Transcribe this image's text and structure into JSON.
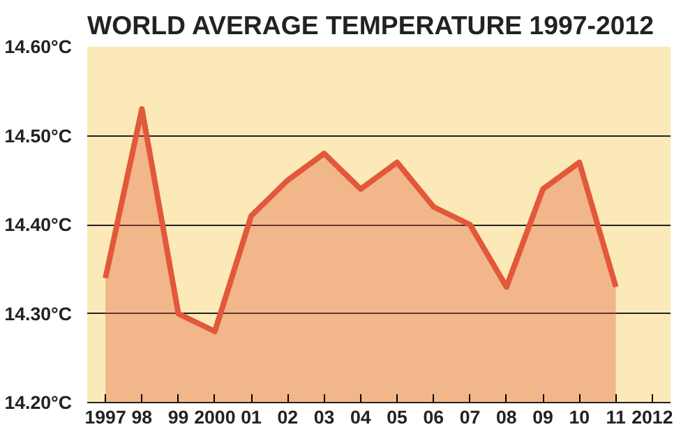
{
  "chart_data": {
    "type": "area",
    "title": "WORLD AVERAGE TEMPERATURE 1997-2012",
    "categories": [
      "1997",
      "98",
      "99",
      "2000",
      "01",
      "02",
      "03",
      "04",
      "05",
      "06",
      "07",
      "08",
      "09",
      "10",
      "11",
      "2012"
    ],
    "series": [
      {
        "color": "#e2583a",
        "values": [
          14.34,
          14.53,
          14.3,
          14.28,
          14.41,
          14.45,
          14.48,
          14.44,
          14.47,
          14.42,
          14.4,
          14.33,
          14.44,
          14.47,
          14.33,
          null
        ]
      }
    ],
    "ylim": [
      14.2,
      14.6
    ],
    "yticks": [
      {
        "value": 14.2,
        "label": "14.20°C"
      },
      {
        "value": 14.3,
        "label": "14.30°C"
      },
      {
        "value": 14.4,
        "label": "14.40°C"
      },
      {
        "value": 14.5,
        "label": "14.50°C"
      },
      {
        "value": 14.6,
        "label": "14.60°C"
      }
    ],
    "grid": "y",
    "marker": "none",
    "line_style": "solid"
  }
}
